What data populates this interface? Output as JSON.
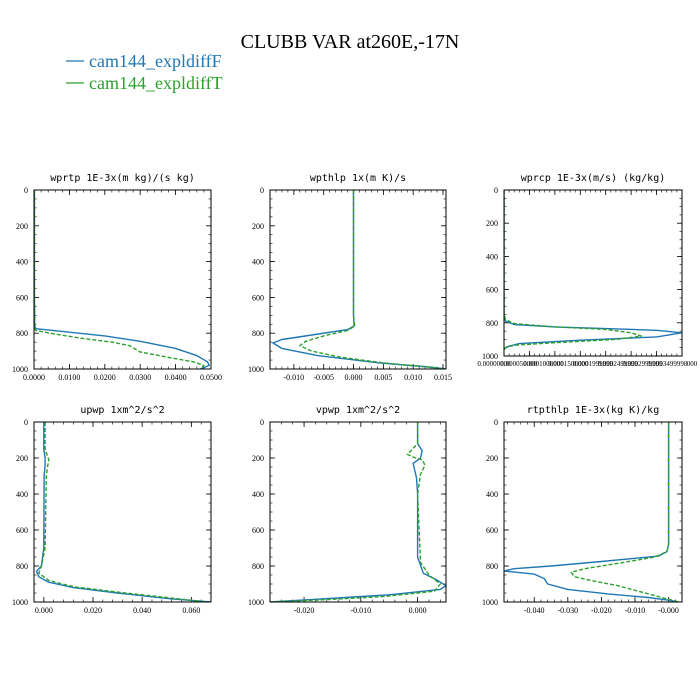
{
  "figure": {
    "title": "CLUBB VAR at260E,-17N",
    "legend": [
      {
        "label": "cam144_expldiffF",
        "color": "#1f77b4"
      },
      {
        "label": "cam144_expldiffT",
        "color": "#2ca02c"
      }
    ]
  },
  "chart_data": [
    {
      "type": "line",
      "title": "wprtp  1E-3x(m kg)/(s kg)",
      "xlim": [
        0,
        0.05
      ],
      "ylim": [
        1000,
        0
      ],
      "xticks": [
        "0.0000",
        "0.0100",
        "0.0200",
        "0.0300",
        "0.0400",
        "0.0500"
      ],
      "xtick_values": [
        0,
        0.01,
        0.02,
        0.03,
        0.04,
        0.05
      ],
      "yticks": [
        "0",
        "200",
        "400",
        "600",
        "800",
        "1000"
      ],
      "ytick_values": [
        0,
        200,
        400,
        600,
        800,
        1000
      ],
      "series": [
        {
          "name": "cam144_expldiffF",
          "color": "#1f77b4",
          "dashed": false,
          "x": [
            0.0001,
            0.0001,
            0.0002,
            0.0005,
            0.008,
            0.02,
            0.03,
            0.04,
            0.046,
            0.049,
            0.0495,
            0.047
          ],
          "y": [
            0,
            600,
            760,
            775,
            790,
            815,
            845,
            885,
            925,
            960,
            980,
            1000
          ]
        },
        {
          "name": "cam144_expldiffT",
          "color": "#2ca02c",
          "dashed": true,
          "x": [
            0.0001,
            0.0001,
            0.0002,
            0.0005,
            0.006,
            0.014,
            0.022,
            0.027,
            0.03,
            0.038,
            0.045,
            0.048,
            0.047
          ],
          "y": [
            0,
            600,
            770,
            785,
            805,
            830,
            850,
            870,
            905,
            935,
            960,
            980,
            1000
          ]
        }
      ]
    },
    {
      "type": "line",
      "title": "wpthlp  1x(m K)/s",
      "xlim": [
        -0.014,
        0.0155
      ],
      "ylim": [
        1000,
        0
      ],
      "xticks": [
        "-0.010",
        "-0.005",
        "0.000",
        "0.005",
        "0.010",
        "0.015"
      ],
      "xtick_values": [
        -0.01,
        -0.005,
        0,
        0.005,
        0.01,
        0.015
      ],
      "yticks": [
        "0",
        "200",
        "400",
        "600",
        "800",
        "1000"
      ],
      "ytick_values": [
        0,
        200,
        400,
        600,
        800,
        1000
      ],
      "series": [
        {
          "name": "cam144_expldiffF",
          "color": "#1f77b4",
          "dashed": false,
          "x": [
            0,
            0,
            0.0001,
            -0.001,
            -0.007,
            -0.012,
            -0.0135,
            -0.012,
            -0.006,
            0.004,
            0.013,
            0.0155
          ],
          "y": [
            0,
            700,
            760,
            780,
            810,
            835,
            855,
            885,
            925,
            965,
            990,
            1000
          ]
        },
        {
          "name": "cam144_expldiffT",
          "color": "#2ca02c",
          "dashed": true,
          "x": [
            0,
            0,
            0.0002,
            -0.001,
            -0.005,
            -0.008,
            -0.009,
            -0.007,
            -0.002,
            0.006,
            0.013,
            0.015
          ],
          "y": [
            0,
            700,
            760,
            785,
            815,
            845,
            870,
            900,
            935,
            970,
            990,
            1000
          ]
        }
      ]
    },
    {
      "type": "line",
      "title": "wprcp  1E-3x(m/s) (kg/kg)",
      "xlim": [
        0,
        0.00035
      ],
      "ylim": [
        1000,
        0
      ],
      "yticks": [
        "0",
        "200",
        "400",
        "600",
        "800",
        "1000"
      ],
      "ytick_values": [
        0,
        200,
        400,
        600,
        800,
        1000
      ],
      "xtick_values": [
        0,
        5e-05,
        0.0001,
        0.00015,
        0.0002,
        0.00025,
        0.0003,
        0.00035
      ],
      "xtick_labels_overlapping": [
        "0.00000000",
        "0.000050000",
        "0.0001000000",
        "0.0001500000",
        "0.0001999999",
        "0.0002499999",
        "0.0002999999",
        "0.0003499998",
        "000"
      ],
      "series": [
        {
          "name": "cam144_expldiffF",
          "color": "#1f77b4",
          "dashed": false,
          "x": [
            0,
            0,
            3e-06,
            2e-05,
            0.0001,
            0.0002,
            0.0003,
            0.00035,
            0.0003,
            0.00015,
            3e-05,
            5e-06,
            0
          ],
          "y": [
            0,
            760,
            790,
            810,
            825,
            835,
            845,
            860,
            885,
            905,
            925,
            945,
            960
          ]
        },
        {
          "name": "cam144_expldiffT",
          "color": "#2ca02c",
          "dashed": true,
          "x": [
            0,
            0,
            3e-06,
            2e-05,
            0.0001,
            0.0002,
            0.00025,
            0.00027,
            0.00022,
            0.0001,
            2e-05,
            3e-06,
            0
          ],
          "y": [
            0,
            750,
            780,
            805,
            825,
            840,
            860,
            880,
            900,
            920,
            935,
            950,
            965
          ]
        }
      ]
    },
    {
      "type": "line",
      "title": "upwp  1xm^2/s^2",
      "xlim": [
        -0.004,
        0.068
      ],
      "ylim": [
        1000,
        0
      ],
      "xticks": [
        "0.000",
        "0.020",
        "0.040",
        "0.060"
      ],
      "xtick_values": [
        0,
        0.02,
        0.04,
        0.06
      ],
      "yticks": [
        "0",
        "200",
        "400",
        "600",
        "800",
        "1000"
      ],
      "ytick_values": [
        0,
        200,
        400,
        600,
        800,
        1000
      ],
      "series": [
        {
          "name": "cam144_expldiffF",
          "color": "#1f77b4",
          "dashed": false,
          "x": [
            0,
            0,
            0.0005,
            0.0005,
            0.0001,
            0,
            -0.001,
            -0.003,
            -0.002,
            0.002,
            0.012,
            0.03,
            0.05,
            0.068
          ],
          "y": [
            0,
            150,
            200,
            240,
            300,
            700,
            800,
            830,
            860,
            890,
            920,
            950,
            980,
            1000
          ]
        },
        {
          "name": "cam144_expldiffT",
          "color": "#2ca02c",
          "dashed": true,
          "x": [
            0.0005,
            0.0005,
            0.002,
            0.0015,
            0.001,
            0.0005,
            -0.001,
            -0.002,
            0.002,
            0.012,
            0.03,
            0.05,
            0.066
          ],
          "y": [
            0,
            150,
            210,
            250,
            300,
            700,
            800,
            840,
            880,
            915,
            945,
            975,
            1000
          ]
        }
      ]
    },
    {
      "type": "line",
      "title": "vpwp  1xm^2/s^2",
      "xlim": [
        -0.026,
        0.005
      ],
      "ylim": [
        1000,
        0
      ],
      "xticks": [
        "-0.020",
        "-0.010",
        "0.000"
      ],
      "xtick_values": [
        -0.02,
        -0.01,
        0
      ],
      "yticks": [
        "0",
        "200",
        "400",
        "600",
        "800",
        "1000"
      ],
      "ytick_values": [
        0,
        200,
        400,
        600,
        800,
        1000
      ],
      "series": [
        {
          "name": "cam144_expldiffF",
          "color": "#1f77b4",
          "dashed": false,
          "x": [
            0,
            0,
            0.0008,
            0.0005,
            -0.0008,
            -0.0005,
            -0.0002,
            0,
            0,
            0.001,
            0.0035,
            0.005,
            0.004,
            -0.005,
            -0.018,
            -0.026
          ],
          "y": [
            0,
            120,
            160,
            200,
            230,
            270,
            310,
            400,
            750,
            840,
            880,
            910,
            930,
            960,
            985,
            1000
          ]
        },
        {
          "name": "cam144_expldiffT",
          "color": "#2ca02c",
          "dashed": true,
          "x": [
            0,
            0,
            -0.0018,
            -0.0008,
            0.0008,
            0.0013,
            0.0005,
            0,
            0.0005,
            0.002,
            0.004,
            0.003,
            -0.006,
            -0.018,
            -0.026
          ],
          "y": [
            0,
            120,
            180,
            195,
            210,
            240,
            290,
            400,
            780,
            850,
            900,
            940,
            970,
            990,
            1000
          ]
        }
      ]
    },
    {
      "type": "line",
      "title": "rtpthlp  1E-3x(kg K)/kg",
      "xlim": [
        -0.049,
        0.004
      ],
      "ylim": [
        1000,
        0
      ],
      "xticks": [
        "-0.040",
        "-0.030",
        "-0.020",
        "-0.010",
        "-0.000"
      ],
      "xtick_values": [
        -0.04,
        -0.03,
        -0.02,
        -0.01,
        0
      ],
      "yticks": [
        "0",
        "200",
        "400",
        "600",
        "800",
        "1000"
      ],
      "ytick_values": [
        0,
        200,
        400,
        600,
        800,
        1000
      ],
      "series": [
        {
          "name": "cam144_expldiffF",
          "color": "#1f77b4",
          "dashed": false,
          "x": [
            0,
            0,
            -0.0005,
            -0.003,
            -0.02,
            -0.035,
            -0.046,
            -0.049,
            -0.04,
            -0.037,
            -0.036,
            -0.03,
            -0.018,
            -0.006,
            0,
            0.003
          ],
          "y": [
            0,
            680,
            720,
            745,
            775,
            800,
            815,
            828,
            845,
            870,
            900,
            930,
            955,
            975,
            990,
            1000
          ]
        },
        {
          "name": "cam144_expldiffT",
          "color": "#2ca02c",
          "dashed": true,
          "x": [
            0,
            0,
            -0.0005,
            -0.004,
            -0.015,
            -0.025,
            -0.029,
            -0.028,
            -0.022,
            -0.015,
            -0.008,
            -0.002,
            0.003
          ],
          "y": [
            0,
            680,
            720,
            750,
            785,
            815,
            835,
            860,
            885,
            910,
            945,
            975,
            1000
          ]
        }
      ]
    }
  ]
}
